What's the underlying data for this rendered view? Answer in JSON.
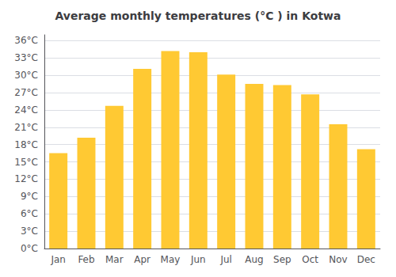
{
  "chart_data": {
    "type": "bar",
    "title": "Average monthly temperatures (°C ) in Kotwa",
    "categories": [
      "Jan",
      "Feb",
      "Mar",
      "Apr",
      "May",
      "Jun",
      "Jul",
      "Aug",
      "Sep",
      "Oct",
      "Nov",
      "Dec"
    ],
    "values": [
      16.5,
      19.2,
      24.7,
      31.1,
      34.2,
      34.0,
      30.1,
      28.5,
      28.3,
      26.7,
      21.5,
      17.2
    ],
    "color": "#FFC933",
    "ylim": [
      0,
      37
    ],
    "yticks": [
      {
        "value": 0,
        "label": "0°C"
      },
      {
        "value": 3,
        "label": "3°C"
      },
      {
        "value": 6,
        "label": "6°C"
      },
      {
        "value": 9,
        "label": "9°C"
      },
      {
        "value": 12,
        "label": "12°C"
      },
      {
        "value": 15,
        "label": "15°C"
      },
      {
        "value": 18,
        "label": "18°C"
      },
      {
        "value": 21,
        "label": "21°C"
      },
      {
        "value": 24,
        "label": "24°C"
      },
      {
        "value": 27,
        "label": "27°C"
      },
      {
        "value": 30,
        "label": "30°C"
      },
      {
        "value": 33,
        "label": "33°C"
      },
      {
        "value": 36,
        "label": "36°C"
      }
    ],
    "grid": true
  }
}
